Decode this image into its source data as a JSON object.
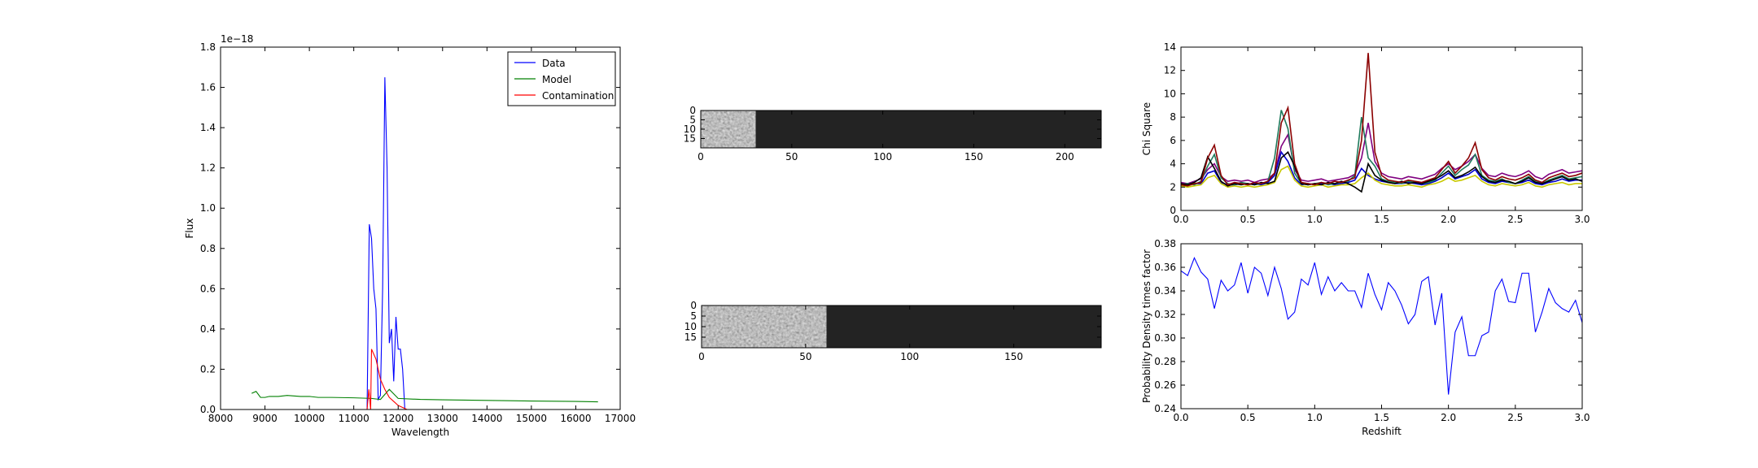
{
  "chart_data": [
    {
      "type": "line",
      "xlabel": "Wavelength",
      "ylabel": "Flux",
      "offset_text": "1e−18",
      "xlim": [
        8000,
        17000
      ],
      "xticks": [
        8000,
        9000,
        10000,
        11000,
        12000,
        13000,
        14000,
        15000,
        16000,
        17000
      ],
      "ylim": [
        0,
        1.8
      ],
      "yticks": [
        {
          "value": 0,
          "label": "0.0"
        },
        0.2,
        0.4,
        0.6,
        0.8,
        {
          "value": 1,
          "label": "1.0"
        },
        1.2,
        1.4,
        1.6,
        1.8
      ],
      "legend": "upper right",
      "series": [
        {
          "name": "Data",
          "color": "#0000ff",
          "x": [
            11300,
            11350,
            11400,
            11450,
            11500,
            11550,
            11600,
            11650,
            11700,
            11750,
            11800,
            11850,
            11900,
            11950,
            12000,
            12050,
            12100,
            12150
          ],
          "values": [
            0,
            0.92,
            0.85,
            0.6,
            0.5,
            0.05,
            0.07,
            0.6,
            1.65,
            1.2,
            0.33,
            0.4,
            0.14,
            0.46,
            0.3,
            0.3,
            0.2,
            0
          ]
        },
        {
          "name": "Model",
          "color": "#008000",
          "x": [
            8700,
            8800,
            8900,
            9000,
            9100,
            9300,
            9500,
            9800,
            10000,
            10200,
            10500,
            11000,
            11400,
            11600,
            11800,
            12000,
            12500,
            13000,
            14000,
            15000,
            16000,
            16500
          ],
          "values": [
            0.08,
            0.09,
            0.06,
            0.06,
            0.065,
            0.065,
            0.07,
            0.065,
            0.065,
            0.06,
            0.06,
            0.058,
            0.055,
            0.05,
            0.1,
            0.055,
            0.05,
            0.048,
            0.045,
            0.042,
            0.04,
            0.038
          ]
        },
        {
          "name": "Contamination",
          "color": "#ff0000",
          "x": [
            11300,
            11340,
            11380,
            11400,
            11500,
            11600,
            11700,
            11800,
            11900,
            12000,
            12100,
            12200,
            12300,
            16500
          ],
          "values": [
            0,
            0.1,
            0,
            0.3,
            0.25,
            0.15,
            0.1,
            0.06,
            0.04,
            0.02,
            0.01,
            0,
            0,
            0
          ]
        }
      ]
    },
    {
      "type": "image",
      "xlim": [
        0,
        220
      ],
      "xticks": [
        0,
        50,
        100,
        150,
        200
      ],
      "ylim": [
        20,
        0
      ],
      "yticks": [
        0,
        5,
        10,
        15
      ],
      "bright_x": [
        0,
        30
      ]
    },
    {
      "type": "image",
      "xlim": [
        0,
        192
      ],
      "xticks": [
        0,
        50,
        100,
        150
      ],
      "ylim": [
        20,
        0
      ],
      "yticks": [
        0,
        5,
        10,
        15
      ],
      "bright_x": [
        0,
        60
      ]
    },
    {
      "type": "line",
      "ylabel": "Chi Square",
      "xlim": [
        0,
        3
      ],
      "xticks": [
        {
          "value": 0,
          "label": "0.0"
        },
        0.5,
        {
          "value": 1,
          "label": "1.0"
        },
        1.5,
        {
          "value": 2,
          "label": "2.0"
        },
        2.5,
        {
          "value": 3,
          "label": "3.0"
        }
      ],
      "ylim": [
        0,
        14
      ],
      "yticks": [
        0,
        2,
        4,
        6,
        8,
        10,
        12,
        14
      ],
      "x": [
        0,
        0.05,
        0.1,
        0.15,
        0.2,
        0.25,
        0.3,
        0.35,
        0.4,
        0.45,
        0.5,
        0.55,
        0.6,
        0.65,
        0.7,
        0.75,
        0.8,
        0.85,
        0.9,
        0.95,
        1,
        1.05,
        1.1,
        1.15,
        1.2,
        1.25,
        1.3,
        1.35,
        1.4,
        1.45,
        1.5,
        1.55,
        1.6,
        1.65,
        1.7,
        1.75,
        1.8,
        1.85,
        1.9,
        1.95,
        2,
        2.05,
        2.1,
        2.15,
        2.2,
        2.25,
        2.3,
        2.35,
        2.4,
        2.45,
        2.5,
        2.55,
        2.6,
        2.65,
        2.7,
        2.75,
        2.8,
        2.85,
        2.9,
        2.95,
        3
      ],
      "series": [
        {
          "color": "#800080",
          "values": [
            2.4,
            2.3,
            2.5,
            2.7,
            3.5,
            4.0,
            2.9,
            2.5,
            2.6,
            2.5,
            2.6,
            2.4,
            2.6,
            2.7,
            3.2,
            5.5,
            6.5,
            3.5,
            2.6,
            2.5,
            2.6,
            2.7,
            2.5,
            2.6,
            2.7,
            2.8,
            3.1,
            4.5,
            7.5,
            4.2,
            3.2,
            2.9,
            2.8,
            2.7,
            2.9,
            2.8,
            2.7,
            2.9,
            3.1,
            3.6,
            4.0,
            3.5,
            3.8,
            4.2,
            4.8,
            3.6,
            3.0,
            2.9,
            3.2,
            3.0,
            2.9,
            3.1,
            3.4,
            2.9,
            2.7,
            3.1,
            3.3,
            3.5,
            3.2,
            3.3,
            3.4
          ]
        },
        {
          "color": "#0000cc",
          "values": [
            2.2,
            2.2,
            2.3,
            2.3,
            3.2,
            3.4,
            2.4,
            2.2,
            2.2,
            2.3,
            2.2,
            2.3,
            2.2,
            2.4,
            3.0,
            5.0,
            4.2,
            2.8,
            2.2,
            2.3,
            2.2,
            2.3,
            2.3,
            2.2,
            2.3,
            2.4,
            2.6,
            3.6,
            3.0,
            2.7,
            2.5,
            2.4,
            2.3,
            2.3,
            2.4,
            2.3,
            2.2,
            2.3,
            2.5,
            2.8,
            3.2,
            2.7,
            2.9,
            3.1,
            3.5,
            2.7,
            2.4,
            2.3,
            2.5,
            2.4,
            2.3,
            2.4,
            2.6,
            2.3,
            2.2,
            2.4,
            2.5,
            2.7,
            2.5,
            2.6,
            2.6
          ]
        },
        {
          "color": "#c8c800",
          "values": [
            2.1,
            2.0,
            2.1,
            2.2,
            2.8,
            3.0,
            2.3,
            2.0,
            2.1,
            2.0,
            2.1,
            2.0,
            2.1,
            2.2,
            2.4,
            3.5,
            3.8,
            2.6,
            2.1,
            2.0,
            2.1,
            2.2,
            2.0,
            2.1,
            2.2,
            2.2,
            2.3,
            2.8,
            3.2,
            2.6,
            2.3,
            2.2,
            2.1,
            2.1,
            2.2,
            2.1,
            2.0,
            2.2,
            2.3,
            2.5,
            2.8,
            2.5,
            2.6,
            2.8,
            3.0,
            2.5,
            2.2,
            2.1,
            2.3,
            2.2,
            2.1,
            2.2,
            2.4,
            2.1,
            2.0,
            2.2,
            2.3,
            2.4,
            2.2,
            2.3,
            2.3
          ]
        },
        {
          "color": "#1f7a5c",
          "values": [
            2.2,
            2.3,
            2.2,
            2.5,
            3.8,
            4.8,
            2.8,
            2.3,
            2.2,
            2.4,
            2.3,
            2.2,
            2.3,
            2.5,
            4.5,
            8.6,
            7.0,
            3.2,
            2.3,
            2.2,
            2.3,
            2.4,
            2.2,
            2.3,
            2.4,
            2.5,
            3.0,
            8.0,
            4.5,
            3.8,
            2.7,
            2.5,
            2.4,
            2.3,
            2.5,
            2.4,
            2.3,
            2.4,
            2.6,
            3.2,
            3.8,
            3.0,
            3.5,
            3.9,
            4.8,
            3.0,
            2.6,
            2.5,
            2.7,
            2.4,
            2.3,
            2.6,
            2.9,
            2.5,
            2.3,
            2.6,
            2.8,
            3.0,
            2.7,
            2.8,
            2.9
          ]
        },
        {
          "color": "#000000",
          "values": [
            2.3,
            2.2,
            2.4,
            2.8,
            4.6,
            3.6,
            2.5,
            2.1,
            2.3,
            2.2,
            2.3,
            2.2,
            2.4,
            2.3,
            2.5,
            4.5,
            5.0,
            3.8,
            2.3,
            2.2,
            2.3,
            2.2,
            2.4,
            2.3,
            2.5,
            2.3,
            2.0,
            1.6,
            4.0,
            3.0,
            2.6,
            2.4,
            2.3,
            2.5,
            2.3,
            2.4,
            2.3,
            2.5,
            2.7,
            3.0,
            3.4,
            2.8,
            3.0,
            3.3,
            3.7,
            2.9,
            2.5,
            2.4,
            2.6,
            2.5,
            2.3,
            2.5,
            2.8,
            2.4,
            2.3,
            2.5,
            2.7,
            2.9,
            2.6,
            2.7,
            2.5
          ]
        },
        {
          "color": "#8b0000",
          "values": [
            2.2,
            2.1,
            2.3,
            2.4,
            4.5,
            5.6,
            3.0,
            2.2,
            2.4,
            2.3,
            2.2,
            2.4,
            2.3,
            2.5,
            3.2,
            7.5,
            8.8,
            4.0,
            2.4,
            2.3,
            2.2,
            2.4,
            2.3,
            2.5,
            2.4,
            2.6,
            2.8,
            6.0,
            13.5,
            5.0,
            3.0,
            2.6,
            2.5,
            2.4,
            2.6,
            2.5,
            2.4,
            2.6,
            2.8,
            3.5,
            4.2,
            3.2,
            3.8,
            4.5,
            5.8,
            3.5,
            2.8,
            2.6,
            2.9,
            2.7,
            2.6,
            2.8,
            3.1,
            2.6,
            2.4,
            2.8,
            3.0,
            3.2,
            2.9,
            3.0,
            3.2
          ]
        }
      ]
    },
    {
      "type": "line",
      "xlabel": "Redshift",
      "ylabel": "Probability Density times factor",
      "xlim": [
        0,
        3
      ],
      "xticks": [
        {
          "value": 0,
          "label": "0.0"
        },
        0.5,
        {
          "value": 1,
          "label": "1.0"
        },
        1.5,
        {
          "value": 2,
          "label": "2.0"
        },
        2.5,
        {
          "value": 3,
          "label": "3.0"
        }
      ],
      "ylim": [
        0.24,
        0.38
      ],
      "yticks": [
        0.24,
        0.26,
        0.28,
        {
          "value": 0.3,
          "label": "0.30"
        },
        0.32,
        0.34,
        0.36,
        0.38
      ],
      "x": [
        0,
        0.05,
        0.1,
        0.15,
        0.2,
        0.25,
        0.3,
        0.35,
        0.4,
        0.45,
        0.5,
        0.55,
        0.6,
        0.65,
        0.7,
        0.75,
        0.8,
        0.85,
        0.9,
        0.95,
        1,
        1.05,
        1.1,
        1.15,
        1.2,
        1.25,
        1.3,
        1.35,
        1.4,
        1.45,
        1.5,
        1.55,
        1.6,
        1.65,
        1.7,
        1.75,
        1.8,
        1.85,
        1.9,
        1.95,
        2,
        2.05,
        2.1,
        2.15,
        2.2,
        2.25,
        2.3,
        2.35,
        2.4,
        2.45,
        2.5,
        2.55,
        2.6,
        2.65,
        2.7,
        2.75,
        2.8,
        2.85,
        2.9,
        2.95,
        3
      ],
      "series": [
        {
          "color": "#0000ff",
          "values": [
            0.357,
            0.353,
            0.368,
            0.356,
            0.35,
            0.325,
            0.349,
            0.34,
            0.345,
            0.364,
            0.338,
            0.36,
            0.355,
            0.336,
            0.36,
            0.342,
            0.316,
            0.322,
            0.35,
            0.345,
            0.364,
            0.337,
            0.352,
            0.34,
            0.347,
            0.34,
            0.34,
            0.326,
            0.355,
            0.337,
            0.324,
            0.347,
            0.34,
            0.328,
            0.312,
            0.32,
            0.348,
            0.352,
            0.311,
            0.338,
            0.252,
            0.305,
            0.318,
            0.285,
            0.285,
            0.302,
            0.305,
            0.34,
            0.35,
            0.331,
            0.33,
            0.355,
            0.355,
            0.305,
            0.322,
            0.342,
            0.33,
            0.325,
            0.322,
            0.332,
            0.313
          ]
        }
      ]
    }
  ]
}
